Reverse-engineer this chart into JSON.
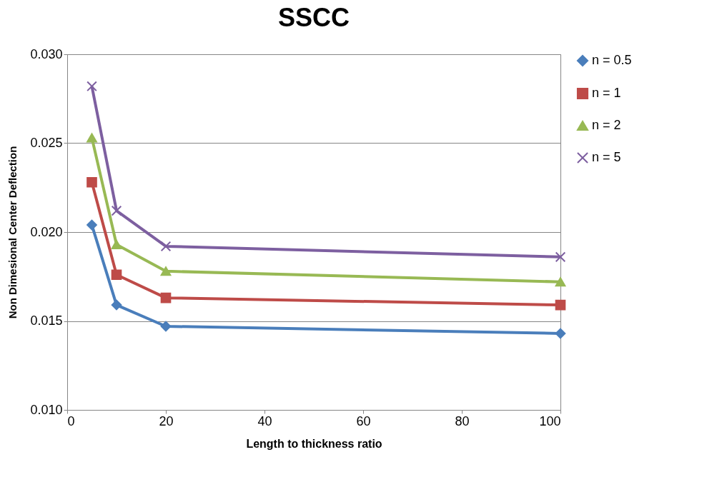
{
  "chart_data": {
    "type": "line",
    "title": "SSCC",
    "xlabel": "Length  to thickness ratio",
    "ylabel": "Non Dimesional Center Deflection",
    "x": [
      5,
      10,
      20,
      100
    ],
    "series": [
      {
        "name": "n = 0.5",
        "color": "#4a7ebb",
        "marker": "diamond",
        "values": [
          0.0204,
          0.0159,
          0.0147,
          0.0143
        ]
      },
      {
        "name": "n = 1",
        "color": "#be4b48",
        "marker": "square",
        "values": [
          0.0228,
          0.0176,
          0.0163,
          0.0159
        ]
      },
      {
        "name": "n = 2",
        "color": "#98b954",
        "marker": "triangle",
        "values": [
          0.0253,
          0.0193,
          0.0178,
          0.0172
        ]
      },
      {
        "name": "n = 5",
        "color": "#7d5fa0",
        "marker": "cross",
        "values": [
          0.0282,
          0.0212,
          0.0192,
          0.0186
        ]
      }
    ],
    "xlim": [
      0,
      100
    ],
    "xticks": [
      0,
      20,
      40,
      60,
      80,
      100
    ],
    "ylim": [
      0.01,
      0.03
    ],
    "yticks": [
      {
        "value": 0.01,
        "label": "0.010"
      },
      {
        "value": 0.015,
        "label": "0.015"
      },
      {
        "value": 0.02,
        "label": "0.020"
      },
      {
        "value": 0.025,
        "label": "0.025"
      },
      {
        "value": 0.03,
        "label": "0.030"
      }
    ],
    "grid": "y",
    "legend": "right",
    "line_style": "solid"
  }
}
